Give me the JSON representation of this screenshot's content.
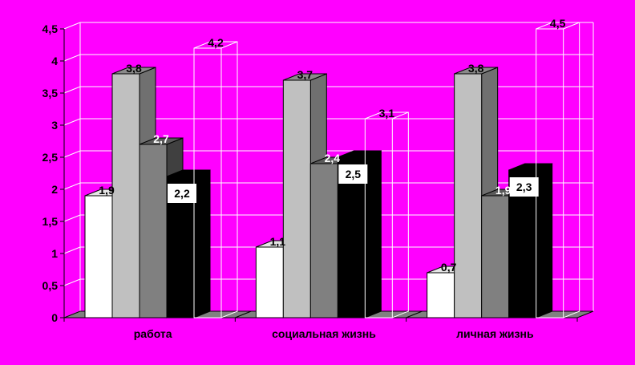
{
  "chart_data": {
    "type": "bar",
    "title": "",
    "xlabel": "",
    "ylabel": "",
    "ylim": [
      0,
      4.5
    ],
    "yticks": [
      "0",
      "0,5",
      "1",
      "1,5",
      "2",
      "2,5",
      "3",
      "3,5",
      "4",
      "4,5"
    ],
    "grid": true,
    "legend": "none",
    "categories": [
      "работа",
      "социальная жизнь",
      "личная жизнь"
    ],
    "series": [
      {
        "values": [
          1.9,
          1.1,
          0.7
        ],
        "labels": [
          "1,9",
          "1,1",
          "0,7"
        ],
        "color": "#ffffff",
        "side": "#c8c8c8",
        "top": "#e6e6e6",
        "label_color": "#000000",
        "label_box": false
      },
      {
        "values": [
          3.8,
          3.7,
          3.8
        ],
        "labels": [
          "3,8",
          "3,7",
          "3,8"
        ],
        "color": "#c0c0c0",
        "side": "#707070",
        "top": "#8a8a8a",
        "label_color": "#000000",
        "label_box": false
      },
      {
        "values": [
          2.7,
          2.4,
          1.9
        ],
        "labels": [
          "2,7",
          "2,4",
          "1,9"
        ],
        "color": "#808080",
        "side": "#404040",
        "top": "#5a5a5a",
        "label_color": "#ffffff",
        "label_box": false
      },
      {
        "values": [
          2.2,
          2.5,
          2.3
        ],
        "labels": [
          "2,2",
          "2,5",
          "2,3"
        ],
        "color": "#000000",
        "side": "#000000",
        "top": "#000000",
        "label_color": "#000000",
        "label_box": true
      },
      {
        "values": [
          4.2,
          3.1,
          4.5
        ],
        "labels": [
          "4,2",
          "3,1",
          "4,5"
        ],
        "color": "none",
        "side": "none",
        "top": "none",
        "label_color": "#000000",
        "label_box": false
      }
    ],
    "colors": {
      "background": "#ff00ff",
      "grid": "#ffffff",
      "floor": "#808080"
    }
  }
}
